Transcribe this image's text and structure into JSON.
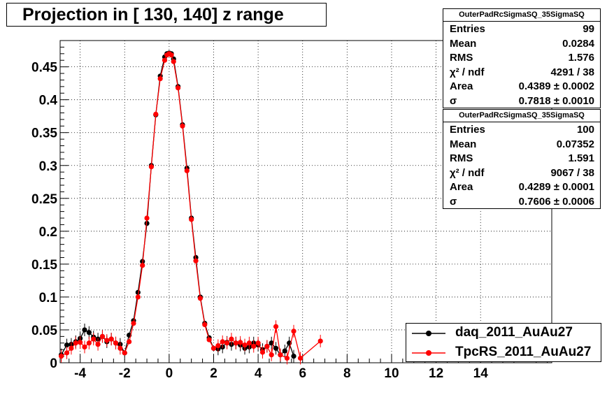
{
  "title": "Projection in [ 130, 140] z range",
  "stats": [
    {
      "header": "OuterPadRcSigmaSQ_35SigmaSQ",
      "rows": [
        {
          "key": "Entries",
          "value": "99"
        },
        {
          "key": "Mean",
          "value": "0.0284"
        },
        {
          "key": "RMS",
          "value": "1.576"
        },
        {
          "key": "χ² / ndf",
          "value": "4291 / 38"
        },
        {
          "key": "Area",
          "value": "0.4389 ± 0.0002"
        },
        {
          "key": "σ",
          "value": "0.7818 ± 0.0010"
        }
      ]
    },
    {
      "header": "OuterPadRcSigmaSQ_35SigmaSQ",
      "rows": [
        {
          "key": "Entries",
          "value": "100"
        },
        {
          "key": "Mean",
          "value": "0.07352"
        },
        {
          "key": "RMS",
          "value": "1.591"
        },
        {
          "key": "χ² / ndf",
          "value": "9067 / 38"
        },
        {
          "key": "Area",
          "value": "0.4289 ± 0.0001"
        },
        {
          "key": "σ",
          "value": "0.7606 ± 0.0006"
        }
      ]
    }
  ],
  "legend": [
    "daq_2011_AuAu27",
    "TpcRS_2011_AuAu27"
  ],
  "colors": {
    "daq": "#000000",
    "tpcrs": "#ff0000"
  },
  "chart_data": {
    "type": "scatter",
    "title": "Projection in [ 130, 140] z range",
    "xlim": [
      -4.9,
      17.2
    ],
    "ylim": [
      0,
      0.49
    ],
    "x_ticks": [
      -4,
      -2,
      0,
      2,
      4,
      6,
      8,
      10,
      12,
      14
    ],
    "x_tick_labels": [
      "-4",
      "-2",
      "0",
      "2",
      "4",
      "6",
      "8",
      "10",
      "12",
      "14"
    ],
    "y_ticks": [
      0,
      0.05,
      0.1,
      0.15,
      0.2,
      0.25,
      0.3,
      0.35,
      0.4,
      0.45
    ],
    "y_tick_labels": [
      "0",
      "0.05",
      "0.1",
      "0.15",
      "0.2",
      "0.25",
      "0.3",
      "0.35",
      "0.4",
      "0.45"
    ],
    "grid": true,
    "legend_position": "bottom-right",
    "series": [
      {
        "name": "daq_2011_AuAu27",
        "color": "#000000",
        "x": [
          -4.85,
          -4.6,
          -4.4,
          -4.2,
          -4.0,
          -3.8,
          -3.6,
          -3.4,
          -3.2,
          -3.0,
          -2.8,
          -2.6,
          -2.4,
          -2.2,
          -2.0,
          -1.8,
          -1.6,
          -1.4,
          -1.2,
          -1.0,
          -0.8,
          -0.6,
          -0.4,
          -0.2,
          -0.1,
          0.0,
          0.1,
          0.2,
          0.4,
          0.6,
          0.8,
          1.0,
          1.2,
          1.4,
          1.6,
          1.8,
          2.0,
          2.2,
          2.4,
          2.6,
          2.8,
          3.0,
          3.2,
          3.4,
          3.6,
          3.8,
          4.0,
          4.2,
          4.4,
          4.6,
          4.8,
          5.0,
          5.2,
          5.4,
          5.6
        ],
        "y": [
          0.012,
          0.027,
          0.028,
          0.032,
          0.037,
          0.05,
          0.046,
          0.039,
          0.036,
          0.04,
          0.032,
          0.036,
          0.03,
          0.028,
          0.015,
          0.042,
          0.064,
          0.107,
          0.154,
          0.212,
          0.3,
          0.377,
          0.436,
          0.465,
          0.47,
          0.471,
          0.47,
          0.462,
          0.42,
          0.362,
          0.296,
          0.22,
          0.16,
          0.1,
          0.06,
          0.038,
          0.022,
          0.021,
          0.024,
          0.031,
          0.028,
          0.03,
          0.027,
          0.022,
          0.024,
          0.03,
          0.027,
          0.02,
          0.025,
          0.03,
          0.022,
          0.012,
          0.018,
          0.03,
          0.01
        ]
      },
      {
        "name": "TpcRS_2011_AuAu27",
        "color": "#ff0000",
        "x": [
          -4.85,
          -4.6,
          -4.4,
          -4.2,
          -4.0,
          -3.8,
          -3.6,
          -3.4,
          -3.2,
          -3.0,
          -2.8,
          -2.6,
          -2.4,
          -2.2,
          -2.0,
          -1.8,
          -1.6,
          -1.4,
          -1.2,
          -1.0,
          -0.8,
          -0.6,
          -0.4,
          -0.2,
          -0.1,
          0.0,
          0.1,
          0.2,
          0.4,
          0.6,
          0.8,
          1.0,
          1.2,
          1.4,
          1.6,
          1.8,
          2.0,
          2.2,
          2.4,
          2.6,
          2.8,
          3.0,
          3.2,
          3.4,
          3.6,
          3.8,
          4.0,
          4.2,
          4.4,
          4.6,
          4.8,
          5.0,
          5.3,
          5.6,
          5.9,
          6.8
        ],
        "y": [
          0.01,
          0.015,
          0.022,
          0.03,
          0.031,
          0.024,
          0.03,
          0.036,
          0.028,
          0.04,
          0.034,
          0.036,
          0.03,
          0.022,
          0.015,
          0.032,
          0.06,
          0.1,
          0.148,
          0.22,
          0.298,
          0.378,
          0.432,
          0.46,
          0.468,
          0.47,
          0.468,
          0.458,
          0.418,
          0.36,
          0.292,
          0.218,
          0.155,
          0.098,
          0.058,
          0.035,
          0.022,
          0.026,
          0.032,
          0.03,
          0.036,
          0.03,
          0.031,
          0.027,
          0.03,
          0.025,
          0.03,
          0.016,
          0.025,
          0.012,
          0.055,
          0.012,
          0.007,
          0.048,
          0.007,
          0.033
        ]
      }
    ]
  }
}
